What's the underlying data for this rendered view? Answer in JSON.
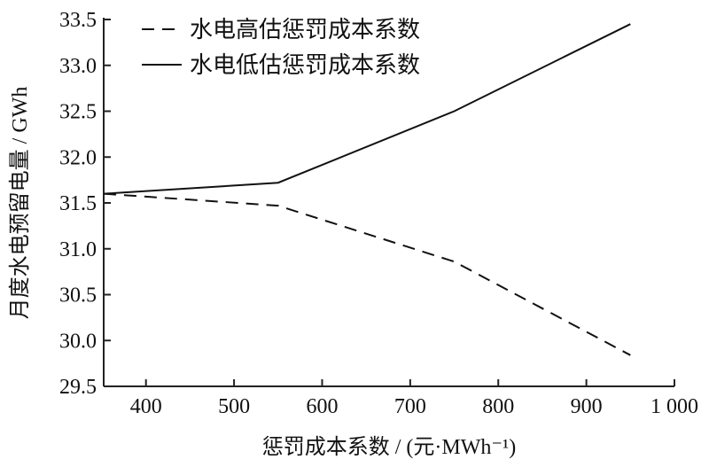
{
  "chart_data": {
    "type": "line",
    "title": "",
    "xlabel": "惩罚成本系数 / (元·MWh⁻¹)",
    "ylabel": "月度水电预留电量 / GWh",
    "xlim": [
      352,
      1000
    ],
    "ylim": [
      29.5,
      33.5
    ],
    "xticks": [
      400,
      500,
      600,
      700,
      800,
      900,
      1000
    ],
    "xtick_labels": [
      "400",
      "500",
      "600",
      "700",
      "800",
      "900",
      "1 000"
    ],
    "yticks": [
      29.5,
      30.0,
      30.5,
      31.0,
      31.5,
      32.0,
      32.5,
      33.0,
      33.5
    ],
    "ytick_labels": [
      "29.5",
      "30.0",
      "30.5",
      "31.0",
      "31.5",
      "32.0",
      "32.5",
      "33.0",
      "33.5"
    ],
    "grid": false,
    "legend_position": "top-left",
    "series": [
      {
        "name": "水电高估惩罚成本系数",
        "style": "dashed",
        "x": [
          352,
          550,
          750,
          950
        ],
        "y": [
          31.6,
          31.47,
          30.86,
          29.84
        ]
      },
      {
        "name": "水电低估惩罚成本系数",
        "style": "solid",
        "x": [
          352,
          550,
          750,
          950
        ],
        "y": [
          31.6,
          31.72,
          32.5,
          33.45
        ]
      }
    ]
  }
}
